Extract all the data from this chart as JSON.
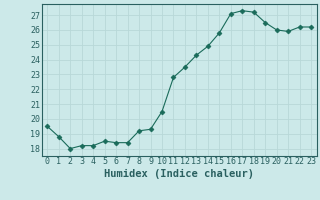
{
  "x": [
    0,
    1,
    2,
    3,
    4,
    5,
    6,
    7,
    8,
    9,
    10,
    11,
    12,
    13,
    14,
    15,
    16,
    17,
    18,
    19,
    20,
    21,
    22,
    23
  ],
  "y": [
    19.5,
    18.8,
    18.0,
    18.2,
    18.2,
    18.5,
    18.4,
    18.4,
    19.2,
    19.3,
    20.5,
    22.8,
    23.5,
    24.3,
    24.9,
    25.8,
    27.1,
    27.3,
    27.2,
    26.5,
    26.0,
    25.9,
    26.2,
    26.2
  ],
  "line_color": "#1a6b5a",
  "marker": "D",
  "marker_size": 2.5,
  "bg_color": "#cce9e9",
  "grid_color": "#b8d8d8",
  "grid_minor_color": "#d0e8e8",
  "xlabel": "Humidex (Indice chaleur)",
  "ylim": [
    17.5,
    27.75
  ],
  "xlim": [
    -0.5,
    23.5
  ],
  "yticks": [
    18,
    19,
    20,
    21,
    22,
    23,
    24,
    25,
    26,
    27
  ],
  "xticks": [
    0,
    1,
    2,
    3,
    4,
    5,
    6,
    7,
    8,
    9,
    10,
    11,
    12,
    13,
    14,
    15,
    16,
    17,
    18,
    19,
    20,
    21,
    22,
    23
  ],
  "tick_label_size": 6.0,
  "xlabel_size": 7.5,
  "tick_color": "#2a6060",
  "spine_color": "#2a6060"
}
